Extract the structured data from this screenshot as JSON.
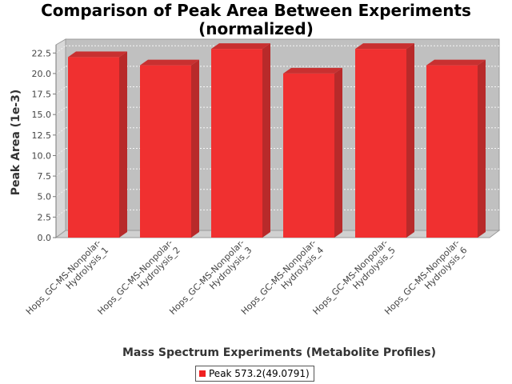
{
  "chart_data": {
    "type": "bar",
    "title_lines": [
      "Comparison of Peak Area Between Experiments",
      "(normalized)"
    ],
    "xlabel": "Mass Spectrum Experiments (Metabolite Profiles)",
    "ylabel": "Peak Area (1e-3)",
    "categories": [
      "Hops_GC-MS-Nonpolar-Hydrolysis_1",
      "Hops_GC-MS-Nonpolar-Hydrolysis_2",
      "Hops_GC-MS-Nonpolar-Hydrolysis_3",
      "Hops_GC-MS-Nonpolar-Hydrolysis_4",
      "Hops_GC-MS-Nonpolar-Hydrolysis_5",
      "Hops_GC-MS-Nonpolar-Hydrolysis_6"
    ],
    "category_label_lines": [
      [
        "Hops_GC-MS-Nonpolar-",
        "Hydrolysis_1"
      ],
      [
        "Hops_GC-MS-Nonpolar-",
        "Hydrolysis_2"
      ],
      [
        "Hops_GC-MS-Nonpolar-",
        "Hydrolysis_3"
      ],
      [
        "Hops_GC-MS-Nonpolar-",
        "Hydrolysis_4"
      ],
      [
        "Hops_GC-MS-Nonpolar-",
        "Hydrolysis_5"
      ],
      [
        "Hops_GC-MS-Nonpolar-",
        "Hydrolysis_6"
      ]
    ],
    "series": [
      {
        "name": "Peak 573.2(49.0791)",
        "values": [
          22,
          21,
          23,
          20,
          23,
          21
        ],
        "color": "#f02020"
      }
    ],
    "ylim": [
      0,
      23.5
    ],
    "yticks": [
      "0.0",
      "2.5",
      "5.0",
      "7.5",
      "10.0",
      "12.5",
      "15.0",
      "17.5",
      "20.0",
      "22.5"
    ],
    "grid": true,
    "legend_position": "bottom-center",
    "style": "3d-bar"
  }
}
